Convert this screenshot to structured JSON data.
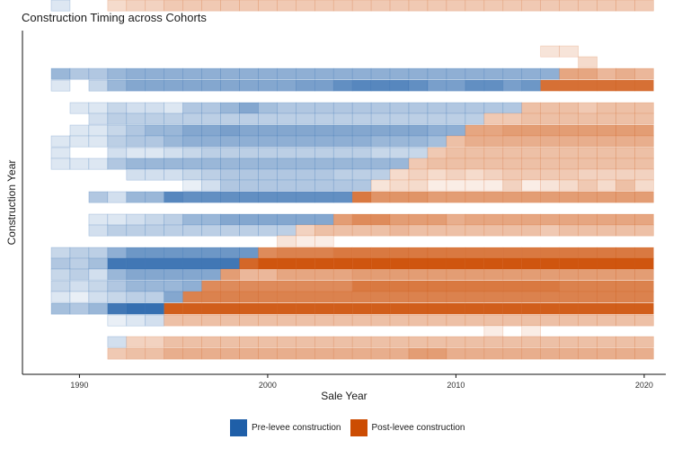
{
  "chart_data": {
    "type": "heatmap",
    "title": "Construction Timing across Cohorts",
    "xlabel": "Sale Year",
    "ylabel": "Construction Year",
    "x_ticks": [
      1990,
      2000,
      2010,
      2020
    ],
    "xlim": [
      1988.1,
      2021.5
    ],
    "legend": {
      "position": "bottom",
      "entries": [
        {
          "label": "Pre-levee construction",
          "color": "#1F5FA8"
        },
        {
          "label": "Post-levee construction",
          "color": "#CC4C02"
        }
      ]
    },
    "colors": {
      "pre": "#1F5FA8",
      "post": "#CC4C02"
    },
    "grid": false,
    "notes": "Each row is a construction-year cohort; each cell is a sale year. Cells before construction are pre-levee (blue), after are post-levee (orange). Intensity reflects sales volume.",
    "rows": [
      {
        "start": 2015,
        "end": 2016,
        "switch": 2015,
        "levels": [
          0.15,
          0.15
        ]
      },
      {
        "start": 2017,
        "end": 2017,
        "switch": 2017,
        "levels": [
          0.2
        ]
      },
      {
        "start": 1989,
        "end": 2020,
        "switch": 2016,
        "levels": [
          0.45,
          0.35,
          0.35,
          0.45,
          0.5,
          0.5,
          0.5,
          0.5,
          0.5,
          0.5,
          0.5,
          0.5,
          0.5,
          0.5,
          0.5,
          0.5,
          0.5,
          0.5,
          0.5,
          0.5,
          0.5,
          0.5,
          0.5,
          0.5,
          0.5,
          0.5,
          0.5,
          0.5,
          0.5,
          0.4,
          0.45,
          0.4
        ]
      },
      {
        "start": 1989,
        "end": 2020,
        "switch": 2015,
        "levels": [
          0.15,
          0,
          0.25,
          0.45,
          0.55,
          0.55,
          0.55,
          0.55,
          0.55,
          0.55,
          0.55,
          0.55,
          0.55,
          0.6,
          0.6,
          0.7,
          0.75,
          0.75,
          0.75,
          0.7,
          0.6,
          0.6,
          0.7,
          0.7,
          0.6,
          0.65,
          0.8,
          0.8,
          0.8,
          0.8,
          0.8,
          0.8
        ]
      },
      {
        "start": 1990,
        "end": 2020,
        "switch": 2014,
        "levels": [
          0.15,
          0.15,
          0.25,
          0.2,
          0.2,
          0.15,
          0.35,
          0.35,
          0.45,
          0.55,
          0.4,
          0.35,
          0.35,
          0.35,
          0.35,
          0.35,
          0.35,
          0.35,
          0.35,
          0.35,
          0.35,
          0.35,
          0.35,
          0.35,
          0.35,
          0.35,
          0.35,
          0.3,
          0.35,
          0.35,
          0.35
        ]
      },
      {
        "start": 1991,
        "end": 2020,
        "switch": 2012,
        "levels": [
          0.2,
          0.3,
          0.3,
          0.3,
          0.3,
          0.3,
          0.3,
          0.3,
          0.3,
          0.3,
          0.3,
          0.3,
          0.3,
          0.3,
          0.3,
          0.3,
          0.3,
          0.3,
          0.3,
          0.3,
          0.3,
          0.3,
          0.3,
          0.35,
          0.35,
          0.35,
          0.35,
          0.35,
          0.35,
          0.35
        ]
      },
      {
        "start": 1990,
        "end": 2020,
        "switch": 2011,
        "levels": [
          0.15,
          0.15,
          0.25,
          0.35,
          0.45,
          0.45,
          0.55,
          0.55,
          0.6,
          0.55,
          0.55,
          0.55,
          0.55,
          0.55,
          0.55,
          0.55,
          0.55,
          0.55,
          0.55,
          0.5,
          0.5,
          0.5,
          0.5,
          0.55,
          0.55,
          0.55,
          0.55,
          0.55,
          0.55,
          0.55,
          0.55
        ]
      },
      {
        "start": 1989,
        "end": 2020,
        "switch": 2010,
        "levels": [
          0.15,
          0.15,
          0.15,
          0.3,
          0.35,
          0.35,
          0.45,
          0.5,
          0.5,
          0.5,
          0.5,
          0.5,
          0.5,
          0.5,
          0.5,
          0.5,
          0.5,
          0.45,
          0.45,
          0.45,
          0.4,
          0.35,
          0.45,
          0.45,
          0.45,
          0.45,
          0.45,
          0.45,
          0.45,
          0.45,
          0.45,
          0.45
        ]
      },
      {
        "start": 1989,
        "end": 2020,
        "switch": 2009,
        "levels": [
          0.15,
          0,
          0,
          0.2,
          0.15,
          0.15,
          0.2,
          0.25,
          0.3,
          0.3,
          0.3,
          0.3,
          0.3,
          0.3,
          0.3,
          0.3,
          0.3,
          0.25,
          0.25,
          0.25,
          0.3,
          0.35,
          0.35,
          0.35,
          0.35,
          0.35,
          0.35,
          0.35,
          0.35,
          0.35,
          0.35,
          0.35
        ]
      },
      {
        "start": 1989,
        "end": 2020,
        "switch": 2008,
        "levels": [
          0.15,
          0.15,
          0.15,
          0.35,
          0.45,
          0.45,
          0.45,
          0.45,
          0.45,
          0.45,
          0.45,
          0.45,
          0.45,
          0.45,
          0.45,
          0.45,
          0.45,
          0.45,
          0.45,
          0.3,
          0.35,
          0.35,
          0.35,
          0.35,
          0.35,
          0.35,
          0.35,
          0.35,
          0.35,
          0.35,
          0.35,
          0.35
        ]
      },
      {
        "start": 1993,
        "end": 2020,
        "switch": 2007,
        "levels": [
          0.2,
          0.2,
          0.2,
          0.25,
          0.3,
          0.35,
          0.35,
          0.35,
          0.35,
          0.35,
          0.35,
          0.3,
          0.3,
          0.3,
          0.2,
          0.25,
          0.2,
          0.25,
          0.2,
          0.25,
          0.3,
          0.3,
          0.3,
          0.3,
          0.25,
          0.25,
          0.25,
          0.25
        ]
      },
      {
        "start": 1996,
        "end": 2020,
        "switch": 2006,
        "levels": [
          0.1,
          0.2,
          0.35,
          0.35,
          0.35,
          0.35,
          0.35,
          0.35,
          0.35,
          0.35,
          0.15,
          0.2,
          0.2,
          0.1,
          0.1,
          0.1,
          0.1,
          0.25,
          0.1,
          0.15,
          0.2,
          0.3,
          0.2,
          0.35,
          0.2
        ]
      },
      {
        "start": 1990,
        "end": 2020,
        "switch": 2005,
        "levels": [
          0,
          0.35,
          0.2,
          0.45,
          0.45,
          0.75,
          0.7,
          0.7,
          0.7,
          0.7,
          0.7,
          0.7,
          0.7,
          0.7,
          0.7,
          0.75,
          0.6,
          0.6,
          0.6,
          0.55,
          0.55,
          0.55,
          0.55,
          0.55,
          0.55,
          0.55,
          0.55,
          0.55,
          0.55,
          0.55,
          0.55
        ]
      },
      {
        "start": 1990,
        "end": 2020,
        "switch": 2004,
        "levels": [
          0,
          0.15,
          0.15,
          0.2,
          0.25,
          0.3,
          0.45,
          0.45,
          0.55,
          0.55,
          0.55,
          0.55,
          0.55,
          0.55,
          0.55,
          0.65,
          0.65,
          0.55,
          0.55,
          0.55,
          0.45,
          0.5,
          0.5,
          0.5,
          0.5,
          0.5,
          0.5,
          0.5,
          0.5,
          0.5,
          0.5
        ]
      },
      {
        "start": 1991,
        "end": 2020,
        "switch": 2002,
        "levels": [
          0.2,
          0.3,
          0.3,
          0.3,
          0.3,
          0.3,
          0.3,
          0.3,
          0.3,
          0.3,
          0.3,
          0.25,
          0.35,
          0.35,
          0.35,
          0.35,
          0.4,
          0.35,
          0.35,
          0.35,
          0.35,
          0.35,
          0.35,
          0.35,
          0.3,
          0.35,
          0.35,
          0.35,
          0.35,
          0.35
        ]
      },
      {
        "start": 2001,
        "end": 2003,
        "switch": 2001,
        "levels": [
          0.15,
          0.1,
          0.1
        ]
      },
      {
        "start": 1989,
        "end": 2020,
        "switch": 2000,
        "levels": [
          0.25,
          0.3,
          0.3,
          0.5,
          0.65,
          0.65,
          0.65,
          0.65,
          0.65,
          0.65,
          0.65,
          0.65,
          0.7,
          0.7,
          0.7,
          0.75,
          0.75,
          0.75,
          0.75,
          0.75,
          0.75,
          0.75,
          0.75,
          0.75,
          0.75,
          0.75,
          0.75,
          0.75,
          0.75,
          0.75,
          0.75,
          0.75
        ]
      },
      {
        "start": 1989,
        "end": 2020,
        "switch": 1999,
        "levels": [
          0.35,
          0.3,
          0.4,
          0.85,
          0.85,
          0.85,
          0.85,
          0.85,
          0.85,
          0.85,
          0.85,
          0.95,
          0.95,
          0.95,
          0.95,
          0.95,
          0.95,
          0.95,
          0.95,
          0.95,
          0.95,
          0.95,
          0.95,
          0.95,
          0.95,
          0.95,
          0.95,
          0.95,
          0.95,
          0.95,
          0.95,
          0.95
        ]
      },
      {
        "start": 1989,
        "end": 2020,
        "switch": 1998,
        "levels": [
          0.25,
          0.3,
          0.2,
          0.45,
          0.55,
          0.55,
          0.55,
          0.55,
          0.55,
          0.55,
          0.4,
          0.4,
          0.5,
          0.5,
          0.5,
          0.5,
          0.55,
          0.55,
          0.55,
          0.55,
          0.55,
          0.55,
          0.55,
          0.55,
          0.55,
          0.55,
          0.55,
          0.55,
          0.55,
          0.55,
          0.55,
          0.55
        ]
      },
      {
        "start": 1989,
        "end": 2020,
        "switch": 1997,
        "levels": [
          0.25,
          0.2,
          0.25,
          0.35,
          0.45,
          0.45,
          0.45,
          0.5,
          0.65,
          0.65,
          0.65,
          0.65,
          0.65,
          0.65,
          0.65,
          0.65,
          0.75,
          0.75,
          0.75,
          0.75,
          0.75,
          0.75,
          0.75,
          0.75,
          0.75,
          0.75,
          0.75,
          0.7,
          0.7,
          0.7,
          0.7,
          0.7
        ]
      },
      {
        "start": 1989,
        "end": 2020,
        "switch": 1996,
        "levels": [
          0.15,
          0.1,
          0.2,
          0.25,
          0.3,
          0.3,
          0.55,
          0.7,
          0.7,
          0.7,
          0.7,
          0.7,
          0.7,
          0.7,
          0.7,
          0.7,
          0.7,
          0.7,
          0.7,
          0.7,
          0.7,
          0.7,
          0.7,
          0.7,
          0.7,
          0.7,
          0.7,
          0.7,
          0.7,
          0.7,
          0.7,
          0.7
        ]
      },
      {
        "start": 1989,
        "end": 2020,
        "switch": 1995,
        "levels": [
          0.4,
          0.35,
          0.45,
          0.85,
          0.9,
          0.9,
          0.9,
          0.9,
          0.9,
          0.9,
          0.9,
          0.9,
          0.9,
          0.9,
          0.9,
          0.9,
          0.9,
          0.9,
          0.9,
          0.9,
          0.9,
          0.9,
          0.9,
          0.9,
          0.9,
          0.9,
          0.9,
          0.9,
          0.9,
          0.9,
          0.9,
          0.9
        ]
      },
      {
        "start": 1992,
        "end": 2020,
        "switch": 1995,
        "levels": [
          0.1,
          0.15,
          0.2,
          0.35,
          0.35,
          0.35,
          0.35,
          0.35,
          0.35,
          0.35,
          0.35,
          0.35,
          0.35,
          0.35,
          0.35,
          0.35,
          0.35,
          0.35,
          0.35,
          0.35,
          0.35,
          0.35,
          0.35,
          0.35,
          0.35,
          0.35,
          0.35,
          0.35,
          0.35
        ]
      },
      {
        "start": 2012,
        "end": 2014,
        "switch": 2012,
        "levels": [
          0.1,
          0,
          0.1
        ]
      },
      {
        "start": 1992,
        "end": 2020,
        "switch": 1993,
        "levels": [
          0.2,
          0.25,
          0.25,
          0.35,
          0.35,
          0.35,
          0.35,
          0.35,
          0.35,
          0.35,
          0.35,
          0.35,
          0.35,
          0.35,
          0.35,
          0.35,
          0.35,
          0.35,
          0.35,
          0.35,
          0.35,
          0.35,
          0.35,
          0.35,
          0.35,
          0.35,
          0.35,
          0.35,
          0.35
        ]
      },
      {
        "start": 1992,
        "end": 2020,
        "switch": 1992,
        "levels": [
          0.3,
          0.35,
          0.35,
          0.45,
          0.45,
          0.45,
          0.45,
          0.45,
          0.45,
          0.45,
          0.45,
          0.45,
          0.45,
          0.45,
          0.45,
          0.45,
          0.55,
          0.55,
          0.45,
          0.45,
          0.45,
          0.45,
          0.45,
          0.45,
          0.45,
          0.45,
          0.45,
          0.45,
          0.45
        ]
      },
      {
        "start": 1989,
        "end": 2020,
        "switch": 1992,
        "levels": [
          0.15,
          0,
          0,
          0.2,
          0.25,
          0.25,
          0.3,
          0.3,
          0.3,
          0.3,
          0.3,
          0.3,
          0.3,
          0.3,
          0.3,
          0.3,
          0.3,
          0.3,
          0.3,
          0.3,
          0.3,
          0.3,
          0.3,
          0.3,
          0.3,
          0.3,
          0.3,
          0.3,
          0.3,
          0.3,
          0.3,
          0.3
        ]
      }
    ]
  }
}
